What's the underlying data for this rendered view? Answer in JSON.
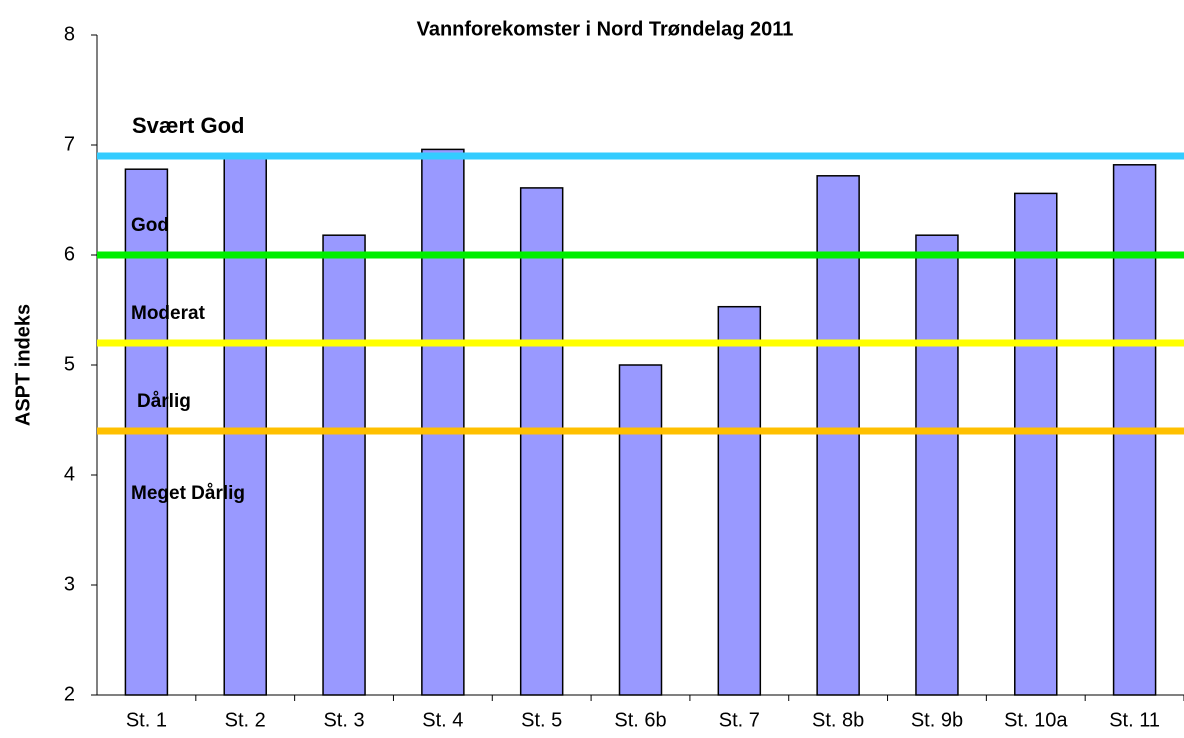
{
  "chart_data": {
    "type": "bar",
    "title": "Vannforekomster i Nord Trøndelag 2011",
    "y_label": "ASPT indeks",
    "categories": [
      "St. 1",
      "St. 2",
      "St. 3",
      "St. 4",
      "St. 5",
      "St. 6b",
      "St. 7",
      "St. 8b",
      "St. 9b",
      "St. 10a",
      "St. 11"
    ],
    "values": [
      6.78,
      6.9,
      6.18,
      6.96,
      6.61,
      5.0,
      5.53,
      6.72,
      6.18,
      6.56,
      6.82
    ],
    "color": "#9999ff",
    "ylim": [
      2,
      8
    ],
    "yticks": [
      2,
      3,
      4,
      5,
      6,
      7,
      8
    ],
    "thresholds": [
      {
        "value": 6.9,
        "color": "#33ccff"
      },
      {
        "value": 6.0,
        "color": "#00ee00"
      },
      {
        "value": 5.2,
        "color": "#ffff00"
      },
      {
        "value": 4.4,
        "color": "#ffc000"
      }
    ],
    "zones": [
      "Svært God",
      "God",
      "Moderat",
      "Dårlig",
      "Meget Dårlig"
    ]
  }
}
